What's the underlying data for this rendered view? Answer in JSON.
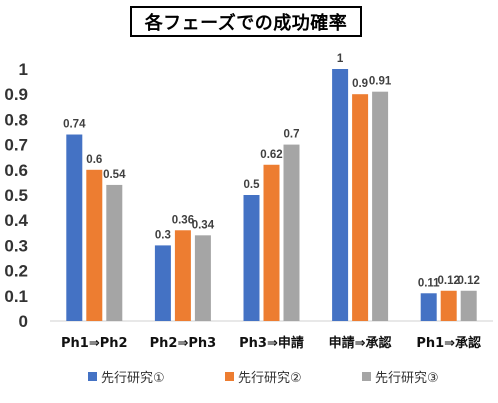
{
  "chart_data": {
    "type": "bar",
    "title": "各フェーズでの成功確率",
    "categories": [
      "Ph1⇒Ph2",
      "Ph2⇒Ph3",
      "Ph3⇒申請",
      "申請⇒承認",
      "Ph1⇒承認"
    ],
    "series": [
      {
        "name": "先行研究①",
        "color": "#4472C4",
        "values": [
          0.74,
          0.3,
          0.5,
          1,
          0.11
        ],
        "labels": [
          "0.74",
          "0.3",
          "0.5",
          "1",
          "0.11"
        ]
      },
      {
        "name": "先行研究②",
        "color": "#ED7D31",
        "values": [
          0.6,
          0.36,
          0.62,
          0.9,
          0.12
        ],
        "labels": [
          "0.6",
          "0.36",
          "0.62",
          "0.9",
          "0.12"
        ]
      },
      {
        "name": "先行研究③",
        "color": "#A5A5A5",
        "values": [
          0.54,
          0.34,
          0.7,
          0.91,
          0.12
        ],
        "labels": [
          "0.54",
          "0.34",
          "0.7",
          "0.91",
          "0.12"
        ]
      }
    ],
    "ylim": [
      0,
      1
    ],
    "yticks": [
      "0",
      "0.1",
      "0.2",
      "0.3",
      "0.4",
      "0.5",
      "0.6",
      "0.7",
      "0.8",
      "0.9",
      "1"
    ],
    "grid": false,
    "legend_position": "bottom"
  }
}
